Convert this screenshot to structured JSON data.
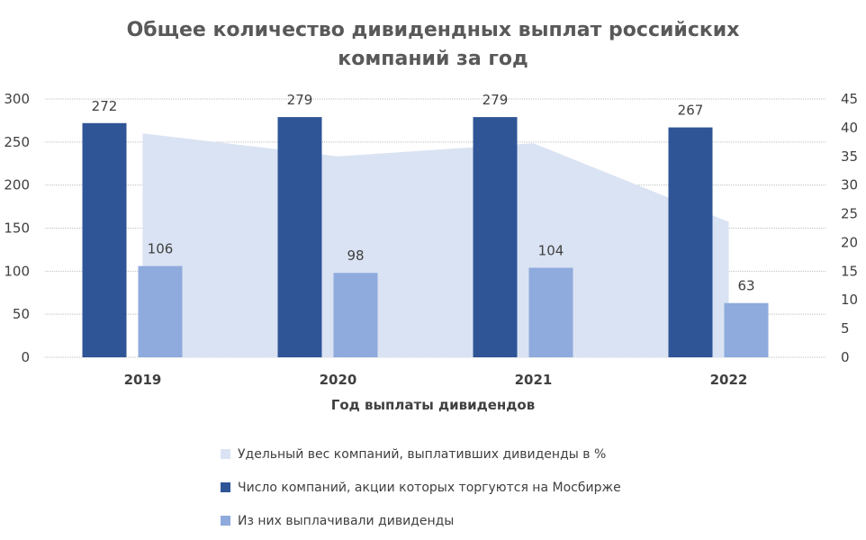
{
  "title_line1": "Общее количество дивидендных выплат российских",
  "title_line2": "компаний за год",
  "xlabel": "Год выплаты дивидендов",
  "colors": {
    "area": "#DAE3F3",
    "total": "#2F5597",
    "paid": "#8FAADC",
    "grid": "#BFBFBF",
    "text": "#404040"
  },
  "chart_data": {
    "type": "bar",
    "title": "Общее количество дивидендных выплат российских компаний за год",
    "xlabel": "Год выплаты дивидендов",
    "ylabel": "",
    "y2label": "",
    "categories": [
      "2019",
      "2020",
      "2021",
      "2022"
    ],
    "ylim": [
      0,
      300
    ],
    "y_ticks": [
      0,
      50,
      100,
      150,
      200,
      250,
      300
    ],
    "y2lim": [
      0,
      45
    ],
    "y2_ticks": [
      0,
      5,
      10,
      15,
      20,
      25,
      30,
      35,
      40,
      45
    ],
    "grid": true,
    "legend_position": "bottom",
    "series": [
      {
        "name": "Удельный вес компаний, выплативших дивиденды в %",
        "type": "area",
        "axis": "secondary",
        "values": [
          39,
          35,
          37.3,
          23.6
        ]
      },
      {
        "name": "Число компаний, акции которых торгуются на Мосбирже",
        "type": "bar",
        "axis": "primary",
        "values": [
          272,
          279,
          279,
          267
        ]
      },
      {
        "name": "Из них выплачивали дивиденды",
        "type": "bar",
        "axis": "primary",
        "values": [
          106,
          98,
          104,
          63
        ]
      }
    ]
  }
}
